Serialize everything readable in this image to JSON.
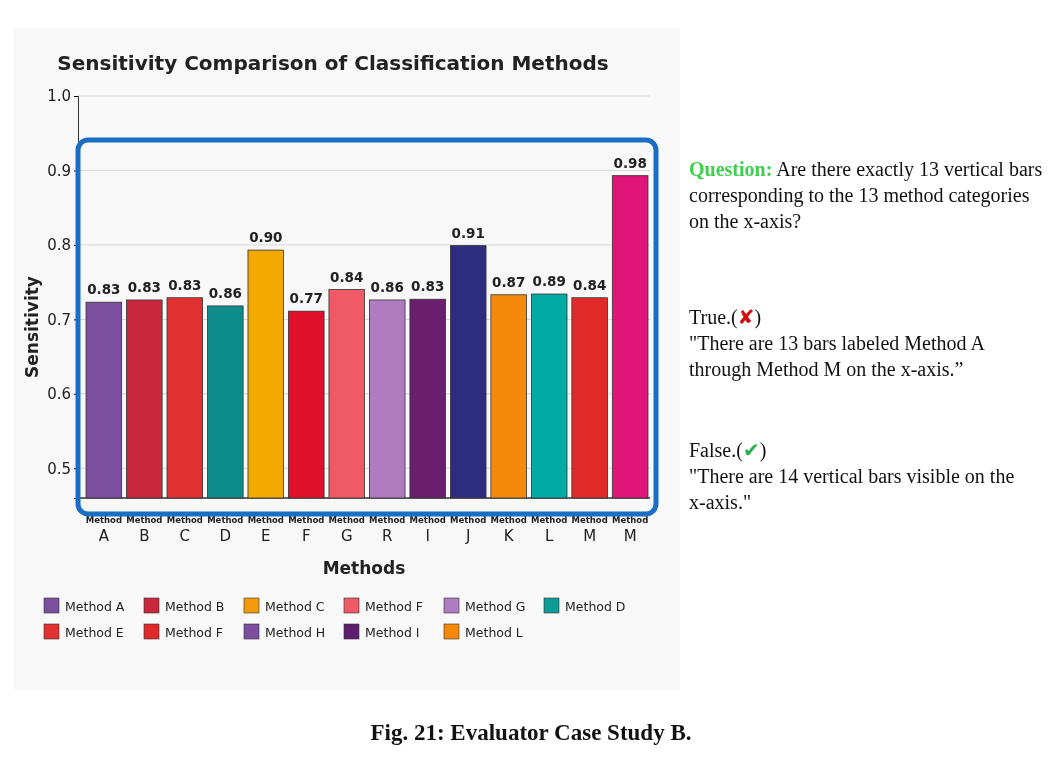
{
  "chart_data": {
    "type": "bar",
    "title": "Sensitivity Comparison of Classification Methods",
    "xlabel": "Methods",
    "ylabel": "Sensitivity",
    "categories": [
      "Method A",
      "Method B",
      "Method C",
      "Method D",
      "Method E",
      "Method F",
      "Method G",
      "Method R",
      "Method I",
      "Method J",
      "Method K",
      "Method L",
      "Method M",
      "Method M"
    ],
    "values": [
      0.723,
      0.726,
      0.729,
      0.718,
      0.793,
      0.711,
      0.74,
      0.726,
      0.727,
      0.799,
      0.733,
      0.734,
      0.729,
      0.893
    ],
    "colors": [
      "#7b4f9e",
      "#c8283e",
      "#e03030",
      "#0e8c8c",
      "#f2a900",
      "#e0102a",
      "#f05a66",
      "#b07cc0",
      "#6a1f6e",
      "#2c2c80",
      "#f58a0a",
      "#00aaa5",
      "#e02a2a",
      "#e0157a"
    ],
    "ylim": [
      0.46,
      1.0
    ],
    "yticks": [
      0.5,
      0.6,
      0.7,
      0.8,
      0.9,
      {
        "value": 1.0,
        "label": "1.0"
      }
    ],
    "grid": "y",
    "annotations": [
      "Method A",
      "Method B",
      "Method C",
      "Method F",
      "Method G",
      "Method D",
      "Method E",
      "Method F",
      "Method H",
      "Method I",
      "Method L",
      {
        "text": "0.83",
        "x": "Method A",
        "y": 0.723
      },
      {
        "text": "0.83",
        "x": "Method B",
        "y": 0.726
      },
      {
        "text": "0.83",
        "x": "Method C",
        "y": 0.729
      },
      {
        "text": "0.86",
        "x": "Method D",
        "y": 0.718
      },
      {
        "text": "0.90",
        "x": "Method E",
        "y": 0.793
      },
      {
        "text": "0.77",
        "x": "Method F",
        "y": 0.711
      },
      {
        "text": "0.84",
        "x": "Method G",
        "y": 0.74
      },
      {
        "text": "0.86",
        "x": "Method R",
        "y": 0.726
      },
      {
        "text": "0.83",
        "x": "Method I",
        "y": 0.727
      },
      {
        "text": "0.91",
        "x": "Method J",
        "y": 0.799
      },
      {
        "text": "0.87",
        "x": "Method K",
        "y": 0.733
      },
      {
        "text": "0.89",
        "x": "Method L",
        "y": 0.734
      },
      {
        "text": "0.84",
        "x": "Method M",
        "y": 0.729
      },
      {
        "text": "0.98",
        "y": 0.893
      },
      "Question: Are there exactly 13 vertical bars corresponding to the 13 method categories on the x-axis?",
      "True.(✘)",
      "\"There are 13 bars labeled Method A through Method M on the x-axis.”",
      "False.(✔)",
      "\"There are 14 vertical bars visible on the x-axis.\"",
      "Fig. 21: Evaluator Case Study B."
    ]
  }
}
